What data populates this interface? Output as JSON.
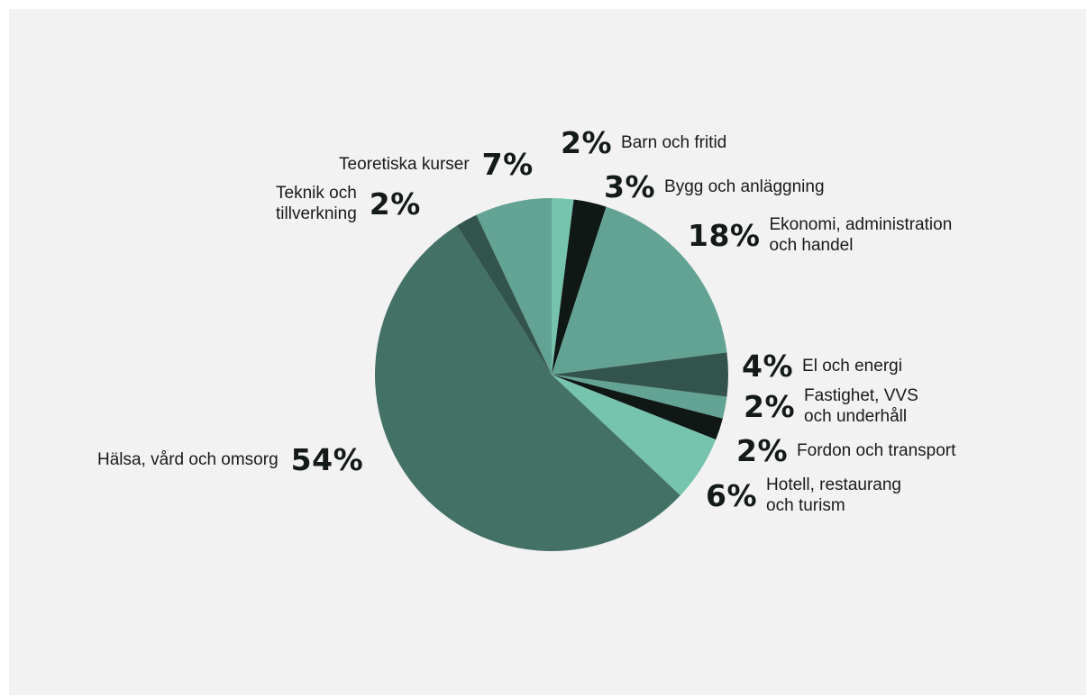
{
  "chart_data": {
    "type": "pie",
    "title": "",
    "start_angle_deg": 0,
    "direction": "clockwise",
    "slices": [
      {
        "label": "Barn och fritid",
        "value": 2,
        "display": "2%",
        "color": "#76c4ae"
      },
      {
        "label": "Bygg och anläggning",
        "value": 3,
        "display": "3%",
        "color": "#101816"
      },
      {
        "label": "Ekonomi, administration och handel",
        "value": 18,
        "display": "18%",
        "color": "#62a393"
      },
      {
        "label": "El och energi",
        "value": 4,
        "display": "4%",
        "color": "#33544c"
      },
      {
        "label": "Fastighet, VVS och underhåll",
        "value": 2,
        "display": "2%",
        "color": "#62a393"
      },
      {
        "label": "Fordon och transport",
        "value": 2,
        "display": "2%",
        "color": "#101816"
      },
      {
        "label": "Hotell, restaurang och turism",
        "value": 6,
        "display": "6%",
        "color": "#76c4ae"
      },
      {
        "label": "Hälsa, vård och omsorg",
        "value": 54,
        "display": "54%",
        "color": "#437166"
      },
      {
        "label": "Teknik och tillverkning",
        "value": 2,
        "display": "2%",
        "color": "#33544c"
      },
      {
        "label": "Teoretiska kurser",
        "value": 7,
        "display": "7%",
        "color": "#62a393"
      }
    ]
  },
  "labels": {
    "barn": {
      "pct": "2%",
      "line1": "Barn och fritid"
    },
    "bygg": {
      "pct": "3%",
      "line1": "Bygg och anläggning"
    },
    "ekonomi": {
      "pct": "18%",
      "line1": "Ekonomi, administration",
      "line2": "och handel"
    },
    "el": {
      "pct": "4%",
      "line1": "El och energi"
    },
    "fastighet": {
      "pct": "2%",
      "line1": "Fastighet, VVS",
      "line2": "och underhåll"
    },
    "fordon": {
      "pct": "2%",
      "line1": "Fordon och transport"
    },
    "hotell": {
      "pct": "6%",
      "line1": "Hotell, restaurang",
      "line2": "och turism"
    },
    "halsa": {
      "pct": "54%",
      "line1": "Hälsa, vård och omsorg"
    },
    "teknik": {
      "pct": "2%",
      "line1": "Teknik och",
      "line2": "tillverkning"
    },
    "teoretiska": {
      "pct": "7%",
      "line1": "Teoretiska kurser"
    }
  }
}
